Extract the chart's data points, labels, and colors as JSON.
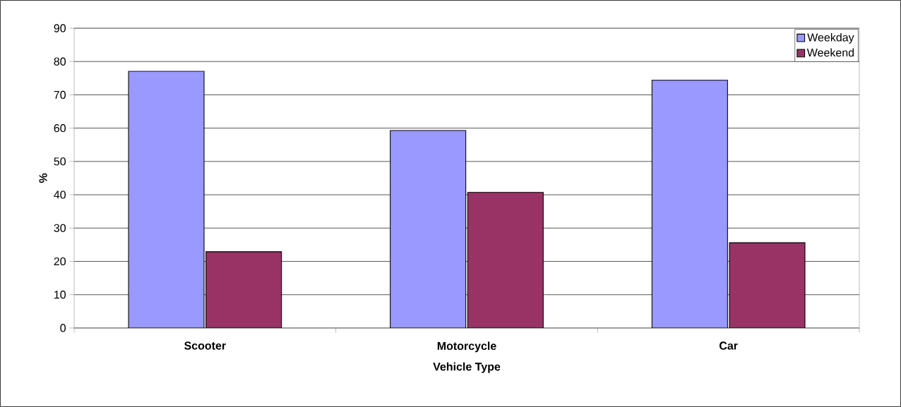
{
  "chart_data": {
    "type": "bar",
    "xlabel": "Vehicle Type",
    "ylabel": "%",
    "categories": [
      "Scooter",
      "Motorcycle",
      "Car"
    ],
    "series": [
      {
        "name": "Weekday",
        "color": "#9999ff",
        "values": [
          77.1,
          59.3,
          74.4
        ]
      },
      {
        "name": "Weekend",
        "color": "#993366",
        "values": [
          22.9,
          40.7,
          25.6
        ]
      }
    ],
    "ylim": [
      0,
      90
    ],
    "yticks": [
      0,
      10,
      20,
      30,
      40,
      50,
      60,
      70,
      80,
      90
    ],
    "grid": "y",
    "legend": "top right"
  }
}
